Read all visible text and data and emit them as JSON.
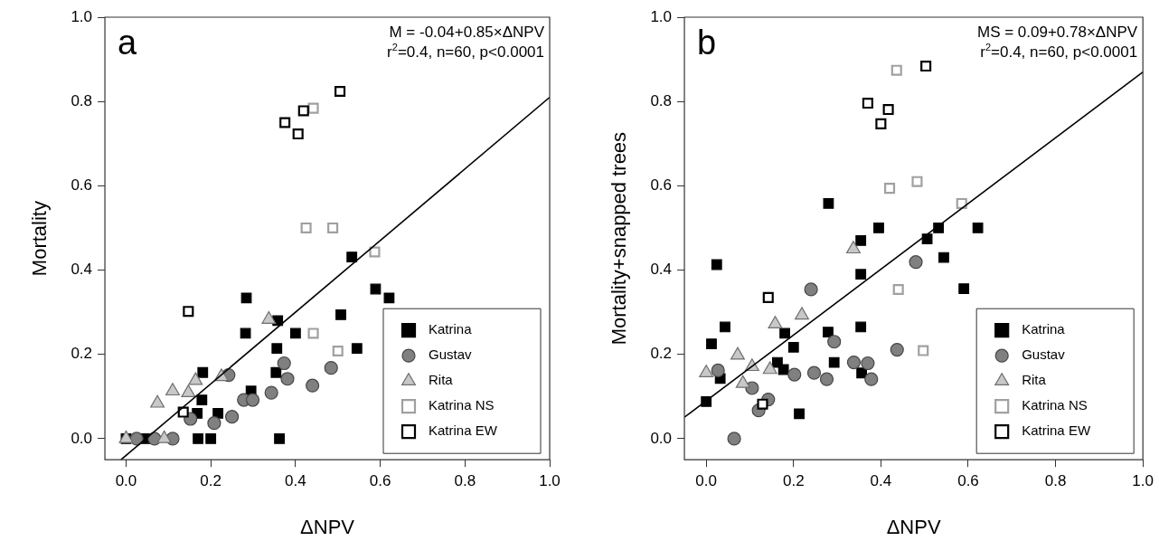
{
  "chart_data": [
    {
      "type": "scatter",
      "title": "a",
      "xlabel": "ΔNPV",
      "ylabel": "Mortality",
      "annotations": [
        "M = -0.04+0.85×ΔNPV",
        "r$^{2}$=0.4, n=60, p<0.0001"
      ],
      "xlim": [
        -0.05,
        1.0
      ],
      "ylim": [
        -0.05,
        1.0
      ],
      "xticks": [
        {
          "value": 0,
          "label": "0.0"
        },
        {
          "value": 0.2,
          "label": "0.2"
        },
        {
          "value": 0.4,
          "label": "0.4"
        },
        {
          "value": 0.6,
          "label": "0.6"
        },
        {
          "value": 0.8,
          "label": "0.8"
        },
        {
          "value": 1,
          "label": "1.0"
        }
      ],
      "yticks": [
        {
          "value": 0,
          "label": "0.0"
        },
        {
          "value": 0.2,
          "label": "0.2"
        },
        {
          "value": 0.4,
          "label": "0.4"
        },
        {
          "value": 0.6,
          "label": "0.6"
        },
        {
          "value": 0.8,
          "label": "0.8"
        },
        {
          "value": 1,
          "label": "1.0"
        }
      ],
      "grid": false,
      "legend": "bottom right",
      "series": [
        {
          "name": "Katrina",
          "color": "#000000",
          "marker": "square",
          "x": [
            0.284,
            0.282,
            0.358,
            0.4,
            0.356,
            0.354,
            0.507,
            0.545,
            0.589,
            0.621,
            0.533,
            0.181,
            0.179,
            0.168,
            0.217,
            0.295,
            0.362,
            0.17,
            0.2,
            0.0,
            0.046
          ],
          "values": [
            0.334,
            0.25,
            0.28,
            0.25,
            0.214,
            0.157,
            0.294,
            0.214,
            0.355,
            0.334,
            0.431,
            0.157,
            0.092,
            0.06,
            0.06,
            0.113,
            0,
            0,
            0,
            0,
            0
          ]
        },
        {
          "name": "Gustav",
          "color": "#808080",
          "marker": "circle",
          "x": [
            0.025,
            0.067,
            0.11,
            0.152,
            0.208,
            0.25,
            0.278,
            0.299,
            0.343,
            0.373,
            0.381,
            0.44,
            0.484,
            0.242
          ],
          "values": [
            0,
            0,
            0,
            0.047,
            0.037,
            0.052,
            0.092,
            0.092,
            0.109,
            0.179,
            0.142,
            0.126,
            0.168,
            0.151
          ]
        },
        {
          "name": "Rita",
          "color": "#c8c8c8",
          "marker": "triangle",
          "x": [
            0,
            0.09,
            0.074,
            0.11,
            0.147,
            0.164,
            0.225,
            0.337
          ],
          "values": [
            0,
            0,
            0.084,
            0.113,
            0.109,
            0.138,
            0.147,
            0.283
          ]
        },
        {
          "name": "Katrina NS",
          "color": "#a0a0a0",
          "marker": "square-open",
          "x": [
            0.442,
            0.5,
            0.425,
            0.488,
            0.587,
            0.442
          ],
          "values": [
            0.25,
            0.208,
            0.5,
            0.5,
            0.443,
            0.784
          ]
        },
        {
          "name": "Katrina EW",
          "color": "#000000",
          "marker": "square-open",
          "x": [
            0.147,
            0.135,
            0.505,
            0.419,
            0.375,
            0.406
          ],
          "values": [
            0.302,
            0.063,
            0.824,
            0.778,
            0.75,
            0.723
          ]
        },
        {
          "type": "line",
          "color": "#000000",
          "marker": "none",
          "x": [
            -0.012,
            1.0
          ],
          "values": [
            -0.05,
            0.81
          ]
        }
      ]
    },
    {
      "type": "scatter",
      "title": "b",
      "xlabel": "ΔNPV",
      "ylabel": "Mortality+snapped trees",
      "annotations": [
        "MS = 0.09+0.78×ΔNPV",
        "r$^{2}$=0.4, n=60, p<0.0001"
      ],
      "xlim": [
        -0.05,
        1.0
      ],
      "ylim": [
        -0.05,
        1.0
      ],
      "xticks": [
        {
          "value": 0,
          "label": "0.0"
        },
        {
          "value": 0.2,
          "label": "0.2"
        },
        {
          "value": 0.4,
          "label": "0.4"
        },
        {
          "value": 0.6,
          "label": "0.6"
        },
        {
          "value": 0.8,
          "label": "0.8"
        },
        {
          "value": 1,
          "label": "1.0"
        }
      ],
      "yticks": [
        {
          "value": 0,
          "label": "0.0"
        },
        {
          "value": 0.2,
          "label": "0.2"
        },
        {
          "value": 0.4,
          "label": "0.4"
        },
        {
          "value": 0.6,
          "label": "0.6"
        },
        {
          "value": 0.8,
          "label": "0.8"
        },
        {
          "value": 1,
          "label": "1.0"
        }
      ],
      "grid": false,
      "legend": "bottom right",
      "series": [
        {
          "name": "Katrina",
          "color": "#000000",
          "marker": "square",
          "x": [
            0.354,
            0.59,
            0.043,
            0.012,
            0.18,
            0.279,
            0.354,
            0.2,
            0.293,
            0.163,
            0.177,
            0.356,
            0.032,
            0,
            0.213,
            0.024,
            0.28,
            0.395,
            0.354,
            0.532,
            0.506,
            0.622,
            0.544
          ],
          "values": [
            0.39,
            0.356,
            0.265,
            0.225,
            0.25,
            0.253,
            0.265,
            0.217,
            0.181,
            0.181,
            0.164,
            0.156,
            0.143,
            0.088,
            0.059,
            0.413,
            0.558,
            0.5,
            0.47,
            0.5,
            0.474,
            0.5,
            0.43
          ]
        },
        {
          "name": "Gustav",
          "color": "#808080",
          "marker": "circle",
          "x": [
            0.24,
            0.293,
            0.338,
            0.37,
            0.378,
            0.276,
            0.247,
            0.202,
            0.437,
            0.027,
            0.105,
            0.142,
            0.12,
            0.064,
            0.48
          ],
          "values": [
            0.354,
            0.23,
            0.181,
            0.179,
            0.141,
            0.141,
            0.156,
            0.152,
            0.211,
            0.162,
            0.12,
            0.093,
            0.067,
            0,
            0.419
          ]
        },
        {
          "name": "Rita",
          "color": "#c8c8c8",
          "marker": "triangle",
          "x": [
            0,
            0.072,
            0.105,
            0.084,
            0.146,
            0.158,
            0.219,
            0.337
          ],
          "values": [
            0.156,
            0.198,
            0.171,
            0.131,
            0.164,
            0.272,
            0.293,
            0.45
          ]
        },
        {
          "name": "Katrina NS",
          "color": "#a0a0a0",
          "marker": "square-open",
          "x": [
            0.44,
            0.497,
            0.42,
            0.483,
            0.585,
            0.436
          ],
          "values": [
            0.354,
            0.209,
            0.594,
            0.61,
            0.558,
            0.874
          ]
        },
        {
          "name": "Katrina EW",
          "color": "#000000",
          "marker": "square-open",
          "x": [
            0.142,
            0.129,
            0.503,
            0.37,
            0.417,
            0.4
          ],
          "values": [
            0.335,
            0.082,
            0.884,
            0.796,
            0.781,
            0.747
          ]
        },
        {
          "type": "line",
          "color": "#000000",
          "marker": "none",
          "x": [
            -0.05,
            1.0
          ],
          "values": [
            0.051,
            0.87
          ]
        }
      ]
    }
  ]
}
